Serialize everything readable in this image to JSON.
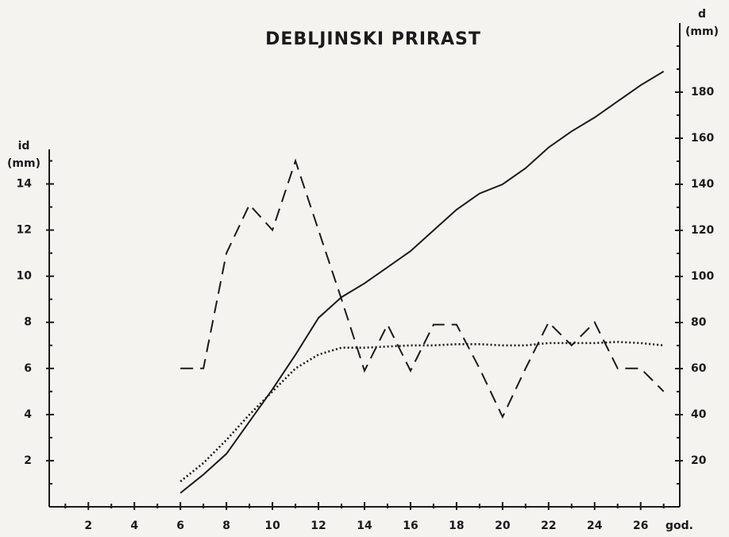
{
  "chart_data": {
    "type": "line",
    "title": "DEBLJINSKI PRIRAST",
    "xlabel": "god.",
    "ylabel": [
      "id",
      "(mm)"
    ],
    "y2label": [
      "d",
      "(mm)"
    ],
    "x": [
      6,
      7,
      8,
      9,
      10,
      11,
      12,
      13,
      14,
      15,
      16,
      17,
      18,
      19,
      20,
      21,
      22,
      23,
      24,
      25,
      26,
      27
    ],
    "series": [
      {
        "color": "#1a1a1a",
        "dash": "dashed",
        "axis": "y",
        "values": [
          6,
          6,
          11,
          13.1,
          12,
          15,
          12,
          9,
          5.9,
          7.9,
          5.9,
          7.9,
          7.9,
          6,
          3.9,
          6,
          8,
          7,
          8,
          6,
          6,
          5
        ]
      },
      {
        "color": "#1a1a1a",
        "dash": "solid",
        "axis": "y2",
        "values": [
          6,
          14,
          23,
          37,
          51,
          66,
          82,
          91,
          97,
          104,
          111,
          120,
          129,
          136,
          140,
          147,
          156,
          163,
          169,
          176,
          183,
          189
        ]
      },
      {
        "color": "#1a1a1a",
        "dash": "dotted",
        "axis": "y",
        "values": [
          1.1,
          1.9,
          2.9,
          4,
          5,
          6,
          6.6,
          6.9,
          6.9,
          6.95,
          7,
          7,
          7.05,
          7.05,
          7,
          7,
          7.1,
          7.1,
          7.1,
          7.15,
          7.1,
          7
        ]
      }
    ],
    "xlim": [
      0.3,
      27.7
    ],
    "xticks": [
      2,
      4,
      6,
      8,
      10,
      12,
      14,
      16,
      18,
      20,
      22,
      24,
      26
    ],
    "xminorticks": [
      1,
      3,
      5,
      7,
      9,
      11,
      13,
      15,
      17,
      19,
      21,
      23,
      25,
      27
    ],
    "ylim": [
      0,
      15.5
    ],
    "yticks": [
      2,
      4,
      6,
      8,
      10,
      12,
      14
    ],
    "yminorticks": [
      1,
      3,
      5,
      7,
      9,
      11,
      13,
      15
    ],
    "y2lim": [
      0,
      210
    ],
    "y2ticks": [
      20,
      40,
      60,
      80,
      100,
      120,
      140,
      160,
      180
    ],
    "y2minorticks": [
      10,
      30,
      50,
      70,
      90,
      110,
      130,
      150,
      170,
      190,
      200
    ],
    "grid": false
  }
}
